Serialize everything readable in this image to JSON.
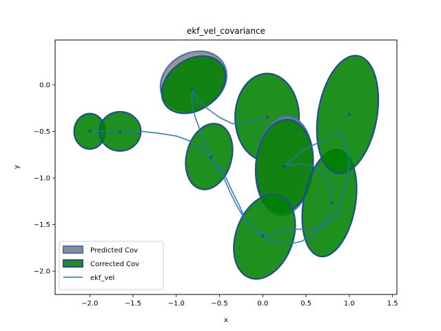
{
  "chart_data": {
    "type": "line",
    "title": "ekf_vel_covariance",
    "xlabel": "x",
    "ylabel": "y",
    "xlim": [
      -2.4,
      1.55
    ],
    "ylim": [
      -2.25,
      0.48
    ],
    "xticks": [
      -2.0,
      -1.5,
      -1.0,
      -0.5,
      0.0,
      0.5,
      1.0,
      1.5
    ],
    "xtick_labels": [
      "−2.0",
      "−1.5",
      "−1.0",
      "−0.5",
      "0.0",
      "0.5",
      "1.0",
      "1.5"
    ],
    "yticks": [
      0.0,
      -0.5,
      -1.0,
      -1.5,
      -2.0
    ],
    "ytick_labels": [
      "0.0",
      "−0.5",
      "−1.0",
      "−1.5",
      "−2.0"
    ],
    "grid": false,
    "legend_position": "lower-left",
    "legend": [
      {
        "label": "Predicted Cov",
        "kind": "patch",
        "face": "#8c8c8c",
        "edge": "#4a6fb0"
      },
      {
        "label": "Corrected Cov",
        "kind": "patch",
        "face": "#228b22",
        "edge": "#1f4e8c"
      },
      {
        "label": "ekf_vel",
        "kind": "line",
        "color": "#1f77b4"
      }
    ],
    "series": [
      {
        "name": "ekf_vel",
        "color": "#1f77b4",
        "x": [
          -2.0,
          -1.8,
          -1.65,
          -1.4,
          -1.2,
          -1.0,
          -0.85,
          -0.7,
          -0.6,
          -0.55,
          -0.45,
          -0.38,
          -0.3,
          -0.2,
          -0.1,
          0.0,
          0.05,
          0.2,
          0.35,
          0.45,
          0.55,
          0.65,
          0.85,
          0.9,
          0.98,
          1.0,
          0.95,
          0.9,
          0.7,
          0.5,
          0.25,
          0.45,
          0.6,
          0.7,
          0.77,
          0.8,
          0.75,
          0.6,
          0.45,
          0.25,
          0.05,
          -0.1,
          -0.2,
          -0.27,
          -0.35,
          -0.45,
          -0.55,
          -0.6,
          -0.65,
          -0.72,
          -0.78,
          -0.82,
          -0.82,
          -0.75,
          -0.65,
          -0.5,
          -0.35,
          -0.2,
          -0.05,
          0.05
        ],
        "y": [
          -0.5,
          -0.5,
          -0.5,
          -0.5,
          -0.52,
          -0.55,
          -0.6,
          -0.7,
          -0.78,
          -0.85,
          -1.0,
          -1.15,
          -1.3,
          -1.45,
          -1.55,
          -1.62,
          -1.66,
          -1.7,
          -1.7,
          -1.68,
          -1.62,
          -1.55,
          -1.4,
          -1.27,
          -1.0,
          -0.8,
          -0.65,
          -0.5,
          -0.6,
          -0.68,
          -0.87,
          -0.85,
          -0.88,
          -0.95,
          -1.05,
          -1.27,
          -1.45,
          -1.55,
          -1.55,
          -1.55,
          -1.62,
          -1.55,
          -1.45,
          -1.3,
          -1.15,
          -0.95,
          -0.85,
          -0.78,
          -0.65,
          -0.5,
          -0.35,
          -0.2,
          -0.05,
          -0.15,
          -0.25,
          -0.35,
          -0.42,
          -0.4,
          -0.37,
          -0.35
        ]
      }
    ],
    "ellipses": [
      {
        "cx": -2.0,
        "cy": -0.5,
        "rx": 0.18,
        "ry": 0.19,
        "angle": 0,
        "type": "corrected"
      },
      {
        "cx": -1.65,
        "cy": -0.5,
        "rx": 0.24,
        "ry": 0.21,
        "angle": 0,
        "type": "corrected"
      },
      {
        "cx": -0.8,
        "cy": 0.04,
        "rx": 0.4,
        "ry": 0.3,
        "angle": -30,
        "type": "predicted"
      },
      {
        "cx": -0.8,
        "cy": 0.0,
        "rx": 0.4,
        "ry": 0.27,
        "angle": -35,
        "type": "corrected"
      },
      {
        "cx": -0.62,
        "cy": -0.77,
        "rx": 0.26,
        "ry": 0.36,
        "angle": 15,
        "type": "corrected"
      },
      {
        "cx": 0.05,
        "cy": -0.35,
        "rx": 0.37,
        "ry": 0.47,
        "angle": 0,
        "type": "corrected"
      },
      {
        "cx": 0.25,
        "cy": -0.87,
        "rx": 0.33,
        "ry": 0.53,
        "angle": 5,
        "type": "predicted"
      },
      {
        "cx": 0.25,
        "cy": -0.87,
        "rx": 0.33,
        "ry": 0.5,
        "angle": 5,
        "type": "corrected"
      },
      {
        "cx": 0.02,
        "cy": -1.63,
        "rx": 0.33,
        "ry": 0.47,
        "angle": 20,
        "type": "corrected"
      },
      {
        "cx": 0.77,
        "cy": -1.27,
        "rx": 0.3,
        "ry": 0.58,
        "angle": 10,
        "type": "corrected"
      },
      {
        "cx": 0.98,
        "cy": -0.32,
        "rx": 0.34,
        "ry": 0.64,
        "angle": 10,
        "type": "corrected"
      }
    ],
    "markers": [
      {
        "x": -2.0,
        "y": -0.5
      },
      {
        "x": -1.65,
        "y": -0.5
      },
      {
        "x": -0.82,
        "y": -0.05
      },
      {
        "x": -0.6,
        "y": -0.78
      },
      {
        "x": 0.05,
        "y": -0.35
      },
      {
        "x": 0.25,
        "y": -0.87
      },
      {
        "x": 0.0,
        "y": -1.62
      },
      {
        "x": 0.8,
        "y": -1.27
      },
      {
        "x": 1.0,
        "y": -0.32
      }
    ]
  }
}
